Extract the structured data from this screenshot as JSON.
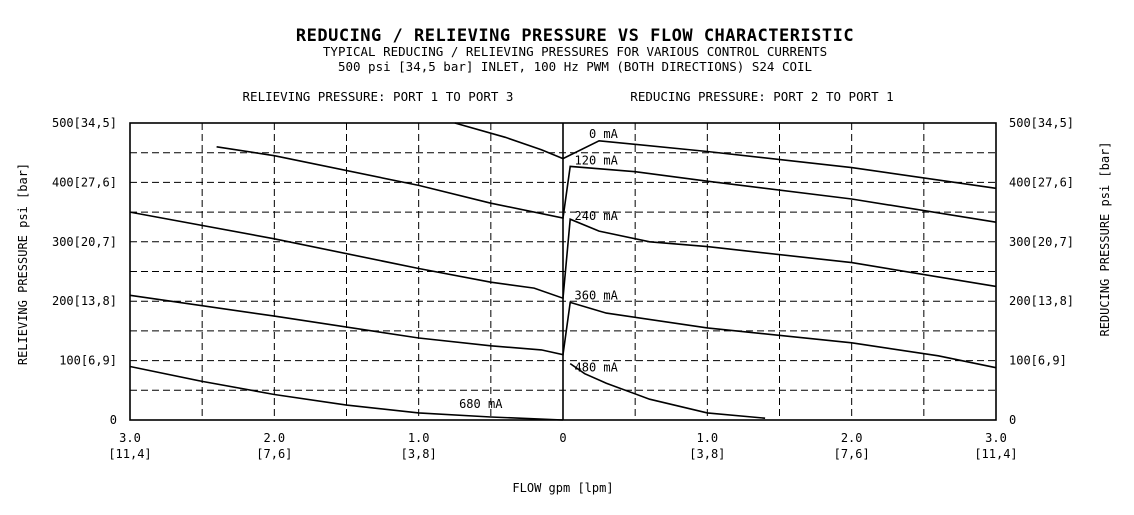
{
  "chart_data": {
    "type": "line",
    "title": "REDUCING / RELIEVING PRESSURE VS FLOW CHARACTERISTIC",
    "subtitle_1": "TYPICAL REDUCING / RELIEVING PRESSURES FOR VARIOUS CONTROL CURRENTS",
    "subtitle_2": "500 psi [34,5 bar] INLET, 100 Hz PWM (BOTH DIRECTIONS) S24 COIL",
    "left_region_label": "RELIEVING PRESSURE: PORT 1 TO PORT 3",
    "right_region_label": "REDUCING PRESSURE: PORT 2 TO PORT 1",
    "xlabel": "FLOW gpm [lpm]",
    "ylabel_left": "RELIEVING PRESSURE psi [bar]",
    "ylabel_right": "REDUCING PRESSURE psi [bar]",
    "xlim": [
      -3.0,
      3.0
    ],
    "ylim": [
      0,
      500
    ],
    "grid": true,
    "x_ticks": [
      {
        "value": -3.0,
        "gpm": "3.0",
        "lpm": "[11,4]"
      },
      {
        "value": -2.0,
        "gpm": "2.0",
        "lpm": "[7,6]"
      },
      {
        "value": -1.0,
        "gpm": "1.0",
        "lpm": "[3,8]"
      },
      {
        "value": 0,
        "gpm": "0",
        "lpm": ""
      },
      {
        "value": 1.0,
        "gpm": "1.0",
        "lpm": "[3,8]"
      },
      {
        "value": 2.0,
        "gpm": "2.0",
        "lpm": "[7,6]"
      },
      {
        "value": 3.0,
        "gpm": "3.0",
        "lpm": "[11,4]"
      }
    ],
    "y_ticks": [
      {
        "value": 0,
        "label": "0"
      },
      {
        "value": 100,
        "label": "100[6,9]"
      },
      {
        "value": 200,
        "label": "200[13,8]"
      },
      {
        "value": 300,
        "label": "300[20,7]"
      },
      {
        "value": 400,
        "label": "400[27,6]"
      },
      {
        "value": 500,
        "label": "500[34,5]"
      }
    ],
    "series": [
      {
        "name": "0 mA",
        "label_at": [
          0.18,
          475
        ],
        "points": [
          [
            -0.75,
            500
          ],
          [
            -0.4,
            476
          ],
          [
            -0.15,
            455
          ],
          [
            0,
            440
          ],
          [
            0.25,
            470
          ],
          [
            1.0,
            452
          ],
          [
            2.0,
            425
          ],
          [
            3.0,
            390
          ]
        ]
      },
      {
        "name": "120 mA",
        "label_at": [
          0.08,
          430
        ],
        "points": [
          [
            -2.4,
            460
          ],
          [
            -2.0,
            445
          ],
          [
            -1.0,
            395
          ],
          [
            -0.5,
            365
          ],
          [
            0,
            340
          ],
          [
            0.05,
            427
          ],
          [
            0.5,
            418
          ],
          [
            1.0,
            402
          ],
          [
            2.0,
            372
          ],
          [
            3.0,
            333
          ]
        ]
      },
      {
        "name": "240 mA",
        "label_at": [
          0.08,
          337
        ],
        "points": [
          [
            -3.0,
            350
          ],
          [
            -2.0,
            305
          ],
          [
            -1.0,
            255
          ],
          [
            -0.5,
            232
          ],
          [
            -0.2,
            222
          ],
          [
            0,
            205
          ],
          [
            0.05,
            338
          ],
          [
            0.25,
            318
          ],
          [
            0.6,
            300
          ],
          [
            1.0,
            292
          ],
          [
            2.0,
            265
          ],
          [
            3.0,
            225
          ]
        ]
      },
      {
        "name": "360 mA",
        "label_at": [
          0.08,
          203
        ],
        "points": [
          [
            -3.0,
            210
          ],
          [
            -2.0,
            175
          ],
          [
            -1.0,
            138
          ],
          [
            -0.5,
            125
          ],
          [
            -0.15,
            118
          ],
          [
            0,
            110
          ],
          [
            0.05,
            198
          ],
          [
            0.3,
            180
          ],
          [
            1.0,
            155
          ],
          [
            2.0,
            130
          ],
          [
            2.6,
            108
          ],
          [
            3.0,
            88
          ]
        ]
      },
      {
        "name": "480 mA",
        "label_at": [
          0.08,
          82
        ],
        "points": [
          [
            0.05,
            95
          ],
          [
            0.15,
            78
          ],
          [
            0.3,
            62
          ],
          [
            0.6,
            35
          ],
          [
            1.0,
            12
          ],
          [
            1.4,
            3
          ]
        ]
      },
      {
        "name": "680 mA",
        "label_at": [
          -0.72,
          20
        ],
        "points": [
          [
            -3.0,
            90
          ],
          [
            -2.5,
            65
          ],
          [
            -2.0,
            43
          ],
          [
            -1.5,
            25
          ],
          [
            -1.0,
            12
          ],
          [
            -0.5,
            5
          ],
          [
            -0.2,
            2
          ],
          [
            0,
            0
          ]
        ]
      }
    ]
  }
}
